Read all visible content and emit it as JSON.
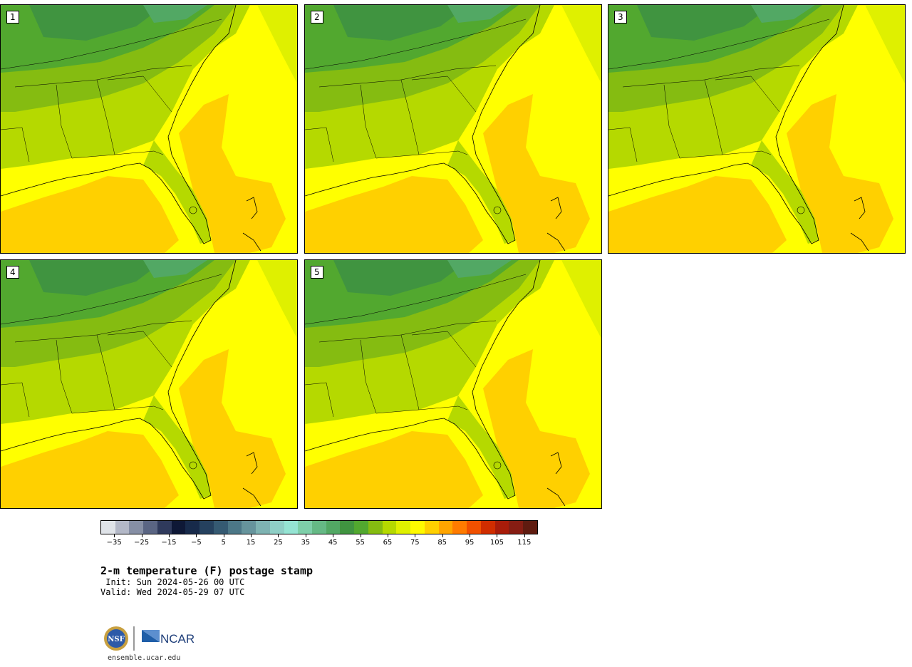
{
  "panels": [
    {
      "label": "1"
    },
    {
      "label": "2"
    },
    {
      "label": "3"
    },
    {
      "label": "4"
    },
    {
      "label": "5"
    }
  ],
  "colorbar": {
    "colors": [
      "#dfe3e8",
      "#b3b8c7",
      "#868fa5",
      "#5a6583",
      "#2f3a5c",
      "#0e1836",
      "#172a4a",
      "#25415e",
      "#355a72",
      "#4c7787",
      "#66949c",
      "#7eb3b2",
      "#8fcfc6",
      "#95e4d3",
      "#7ecfa9",
      "#65b985",
      "#52a864",
      "#409440",
      "#52a82f",
      "#85bc11",
      "#b5d900",
      "#dff000",
      "#fffa00",
      "#ffd000",
      "#ffa500",
      "#ff7b00",
      "#f05000",
      "#d02d00",
      "#a81c0a",
      "#861d13",
      "#5f1b10"
    ],
    "tick_labels": [
      "−35",
      "−25",
      "−15",
      "−5",
      "5",
      "15",
      "25",
      "35",
      "45",
      "55",
      "65",
      "75",
      "85",
      "95",
      "105",
      "115"
    ],
    "min": -40,
    "max": 120
  },
  "title": "2-m temperature (F) postage stamp",
  "init_text": " Init: Sun 2024-05-26 00 UTC",
  "valid_text": "Valid: Wed 2024-05-29 07 UTC",
  "logo_text": "NCAR",
  "nsf_text": "NSF",
  "website": "ensemble.ucar.edu"
}
